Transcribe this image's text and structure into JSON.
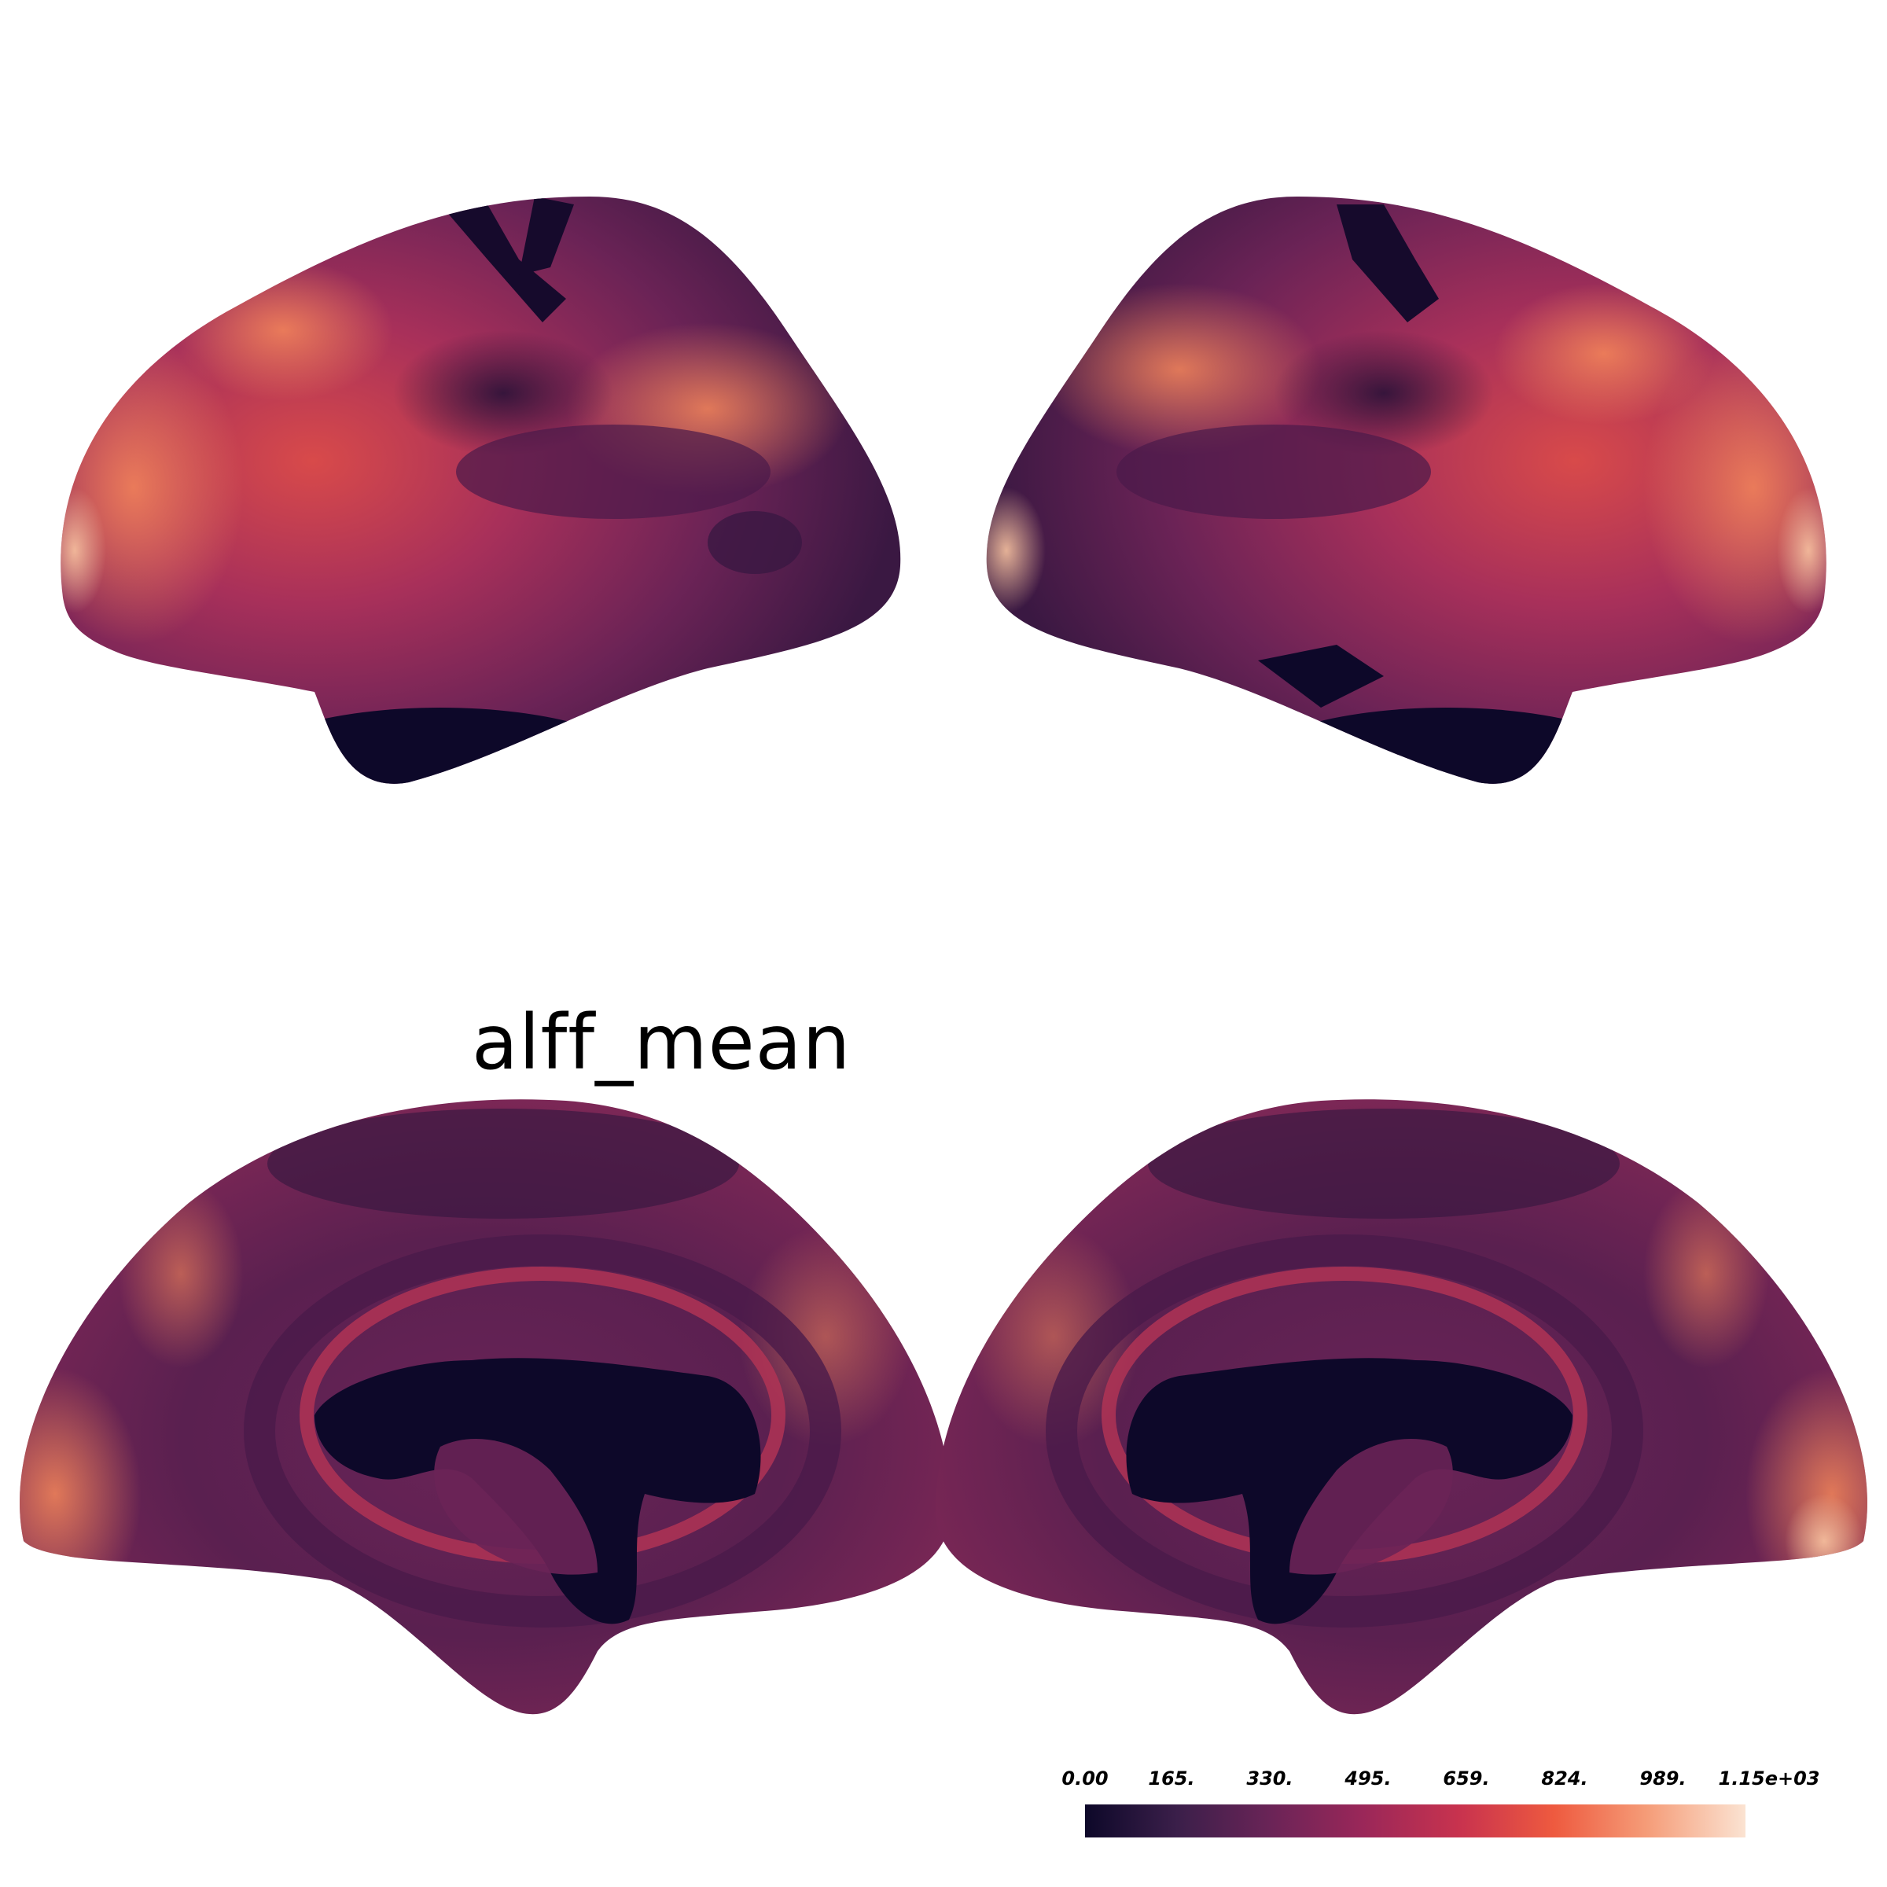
{
  "title": "alff_mean",
  "colorbar": {
    "ticks": [
      "0.00",
      "165.",
      "330.",
      "495.",
      "659.",
      "824.",
      "989.",
      "1.15e+03"
    ],
    "colors": [
      "#0d0829",
      "#3b1f4a",
      "#6a2457",
      "#9a2759",
      "#c9334e",
      "#ee5a3f",
      "#f59c78",
      "#fbe3d2"
    ]
  },
  "views": [
    {
      "name": "left-lateral"
    },
    {
      "name": "right-lateral"
    },
    {
      "name": "left-medial"
    },
    {
      "name": "right-medial"
    }
  ]
}
